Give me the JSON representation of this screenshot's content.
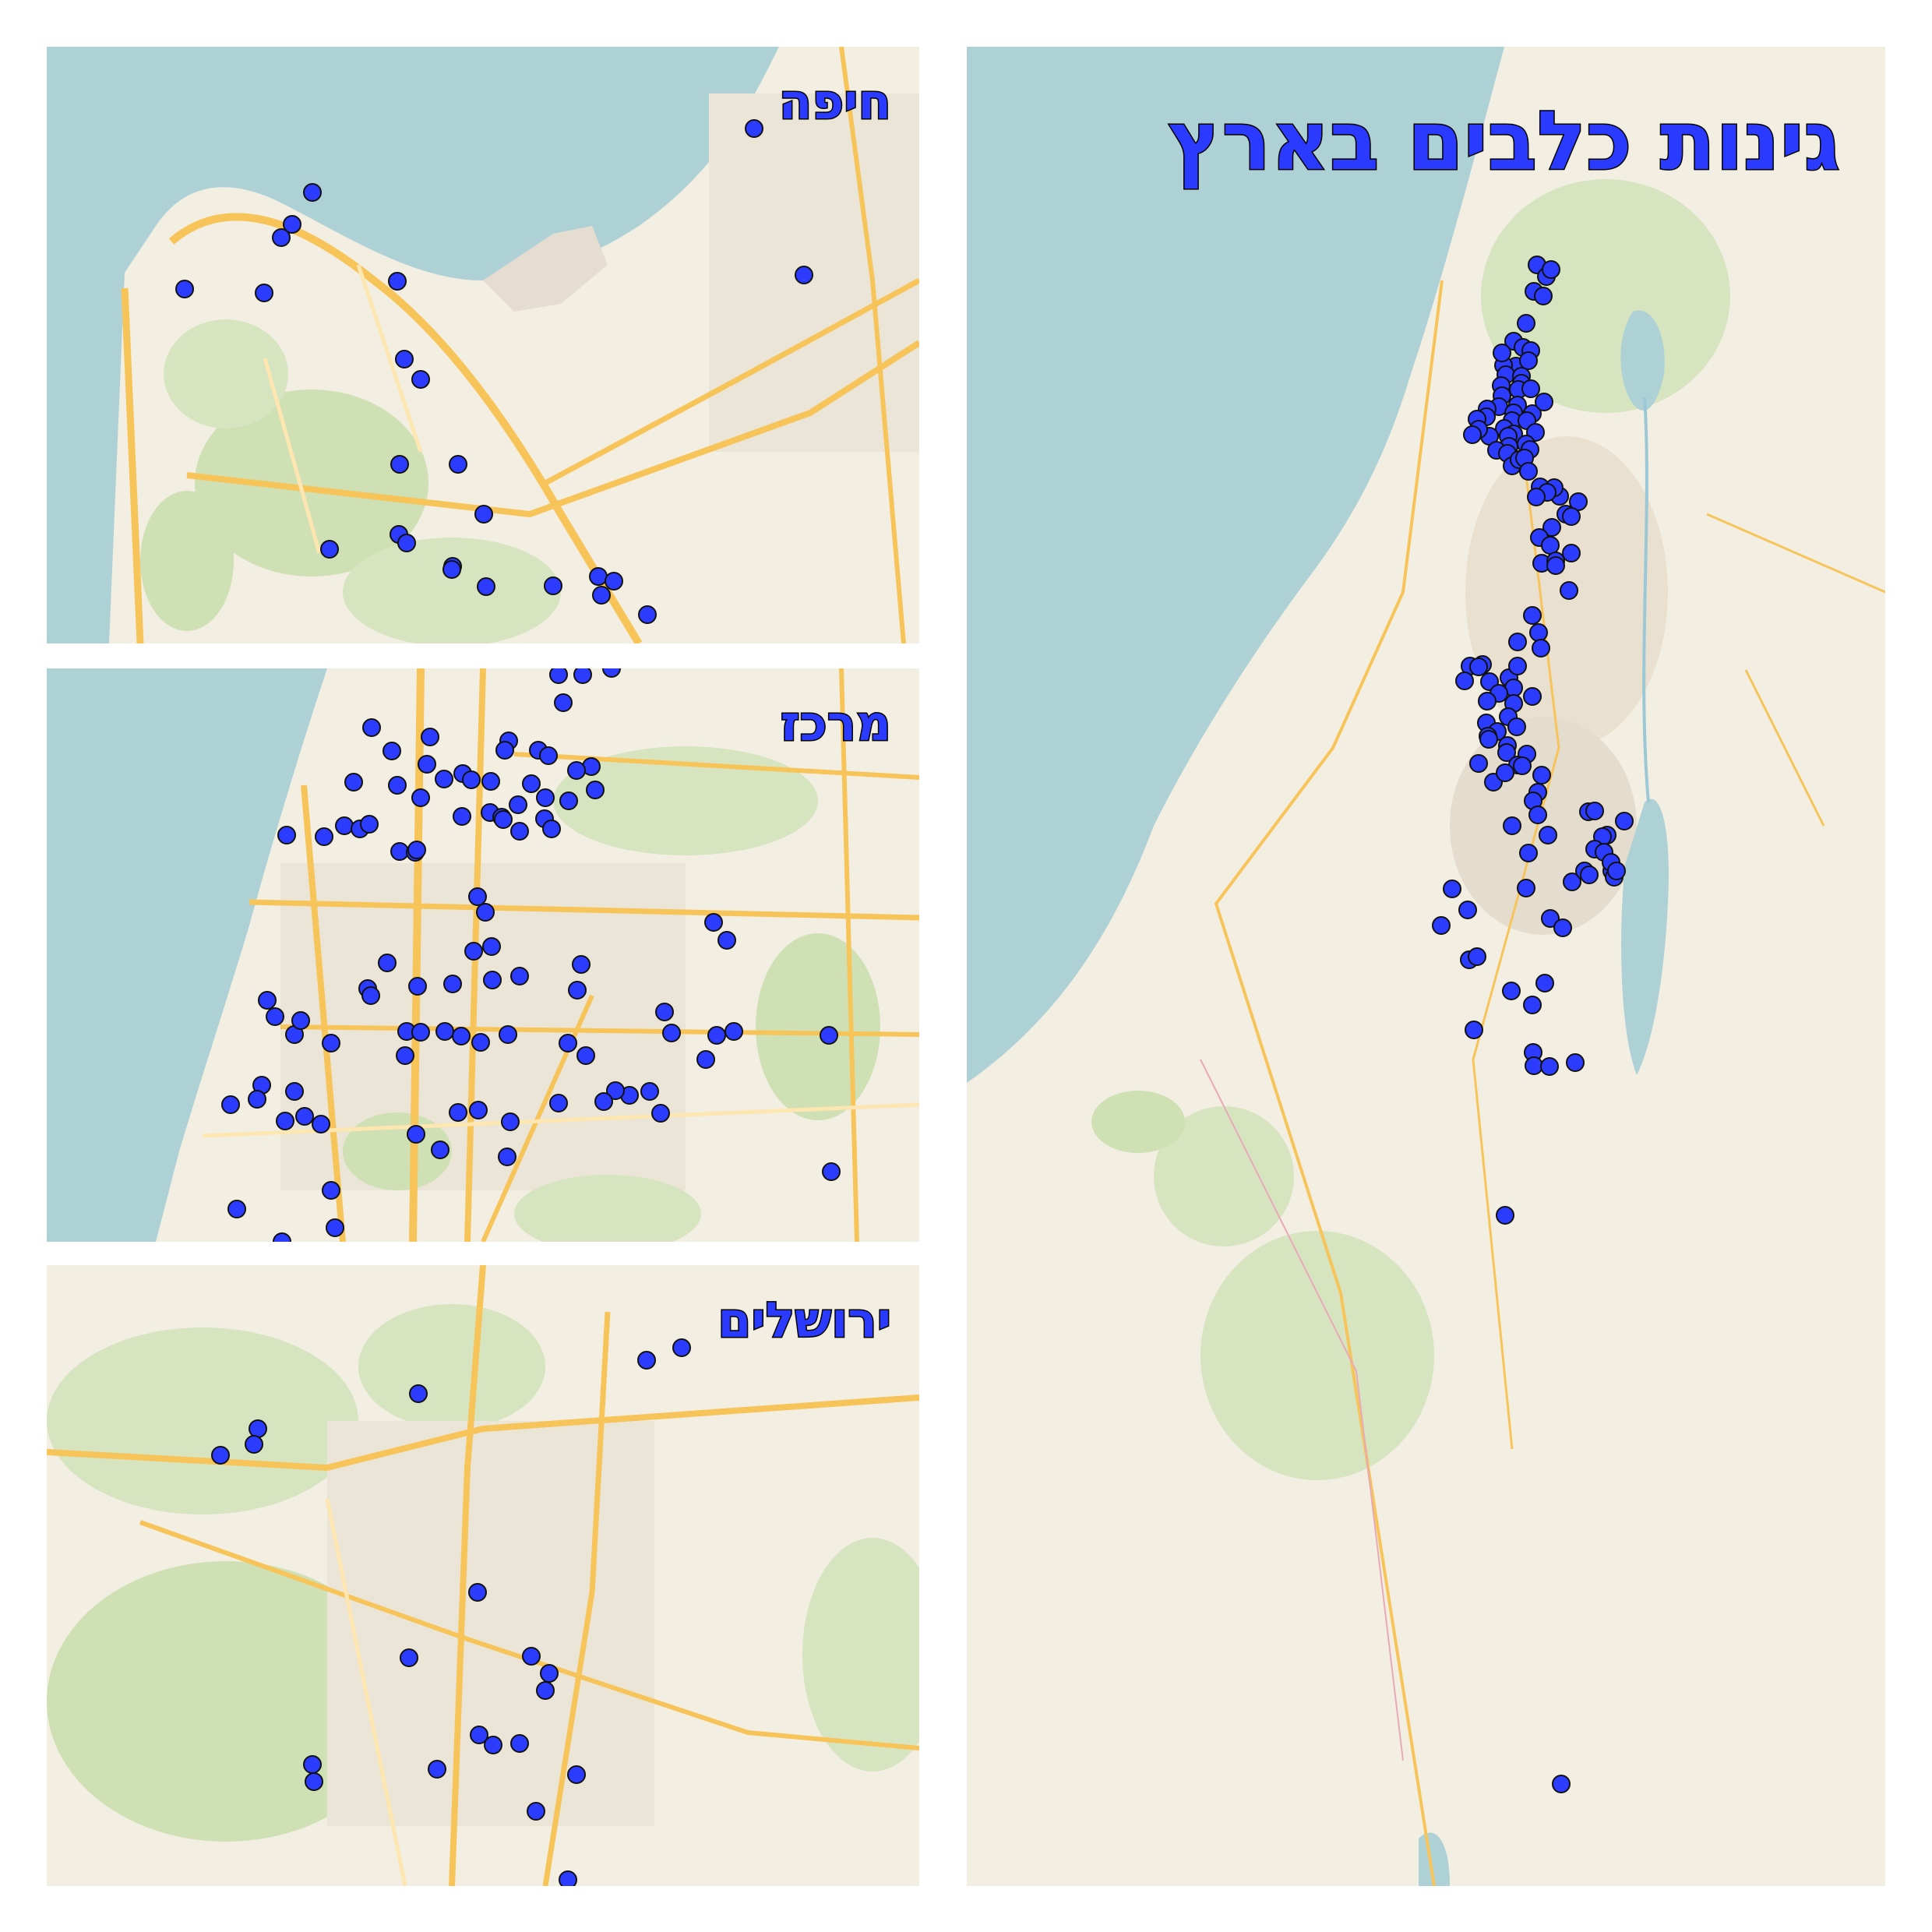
{
  "title": "גינות כלבים בארץ",
  "colors": {
    "sea": "#aed1d6",
    "land": "#f3eee2",
    "green": "#cfe0b5",
    "road": "#f7c45a",
    "minor_road": "#fde6b0",
    "urban": "#e9e3d6",
    "marker": "#2b3cff",
    "marker_stroke": "#111111"
  },
  "panels": {
    "haifa": {
      "label": "חיפה"
    },
    "center": {
      "label": "מרכז"
    },
    "jerusalem": {
      "label": "ירושלים"
    },
    "country": {
      "label": "גינות כלבים בארץ"
    }
  }
}
